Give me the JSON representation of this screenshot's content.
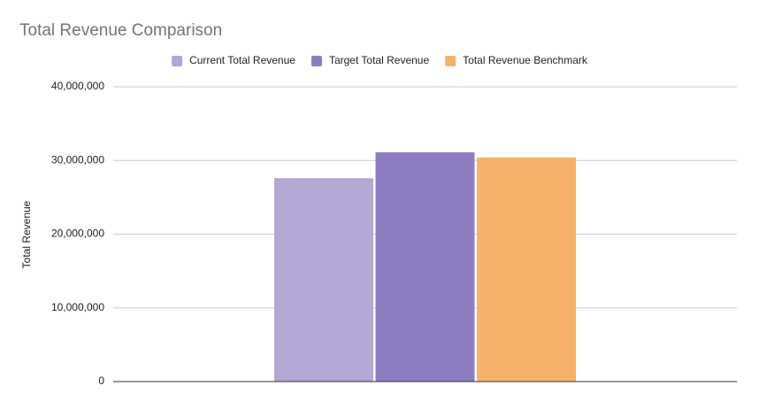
{
  "chart_data": {
    "type": "bar",
    "title": "Total Revenue Comparison",
    "y_label": "Total Revenue",
    "categories": [
      null
    ],
    "series": [
      {
        "name": "Current Total Revenue",
        "color": "#b4a7d6",
        "values": [
          27600000
        ]
      },
      {
        "name": "Target Total Revenue",
        "color": "#8e7cc3",
        "values": [
          31100000
        ]
      },
      {
        "name": "Total Revenue Benchmark",
        "color": "#f6b26b",
        "values": [
          30400000
        ]
      }
    ],
    "ylim": [
      0,
      40000000
    ],
    "yticks": [
      0,
      {
        "value": 10000000,
        "label": "10,000,000"
      },
      {
        "value": 20000000,
        "label": "20,000,000"
      },
      {
        "value": 30000000,
        "label": "30,000,000"
      },
      {
        "value": 40000000,
        "label": "40,000,000"
      }
    ],
    "grid": true,
    "legend": "top"
  }
}
